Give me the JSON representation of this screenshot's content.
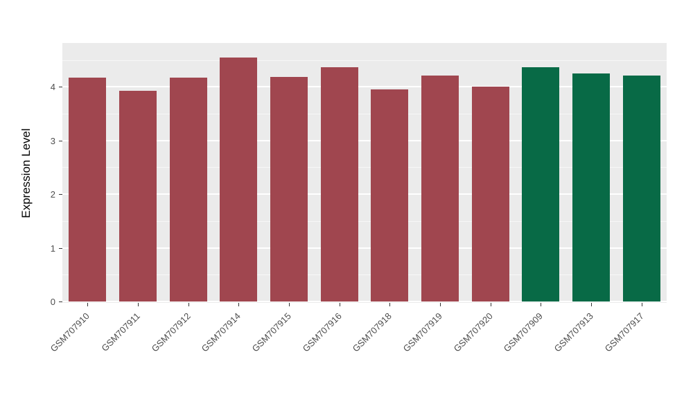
{
  "chart_data": {
    "type": "bar",
    "title": "",
    "xlabel": "",
    "ylabel": "Expression Level",
    "ylim": [
      0,
      4.65
    ],
    "yticks": [
      0,
      1,
      2,
      3,
      4
    ],
    "minor_yticks": [
      0.5,
      1.5,
      2.5,
      3.5,
      4.5
    ],
    "grid": true,
    "legend_position": "none",
    "categories": [
      "GSM707910",
      "GSM707911",
      "GSM707912",
      "GSM707914",
      "GSM707915",
      "GSM707916",
      "GSM707918",
      "GSM707919",
      "GSM707920",
      "GSM707909",
      "GSM707913",
      "GSM707917"
    ],
    "values": [
      4.17,
      3.93,
      4.17,
      4.55,
      4.19,
      4.36,
      3.95,
      4.21,
      4.01,
      4.36,
      4.25,
      4.21
    ],
    "groups": [
      "group1",
      "group1",
      "group1",
      "group1",
      "group1",
      "group1",
      "group1",
      "group1",
      "group1",
      "group2",
      "group2",
      "group2"
    ],
    "group_colors": {
      "group1": "#A0464F",
      "group2": "#086A46"
    },
    "panel_background": "#EBEBEB",
    "gridline_color": "#FFFFFF"
  }
}
